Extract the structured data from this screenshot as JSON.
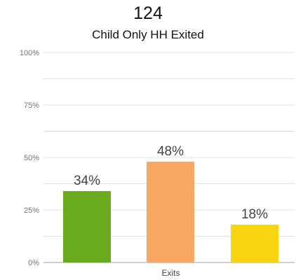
{
  "header": {
    "value": "124",
    "caption": "Child Only HH Exited"
  },
  "chart_data": {
    "type": "bar",
    "categories": [
      "Exits"
    ],
    "series": [
      {
        "values": [
          34
        ],
        "label": "34%",
        "color": "#6aaa1e"
      },
      {
        "values": [
          48
        ],
        "label": "48%",
        "color": "#f9a764"
      },
      {
        "values": [
          18
        ],
        "label": "18%",
        "color": "#f9d511"
      }
    ],
    "ylim": [
      0,
      100
    ],
    "yticks": [
      {
        "value": 0,
        "label": "0%"
      },
      {
        "value": 25,
        "label": "25%"
      },
      {
        "value": 50,
        "label": "50%"
      },
      {
        "value": 75,
        "label": "75%"
      },
      {
        "value": 100,
        "label": "100%"
      }
    ],
    "grid": true,
    "legend": "none",
    "title": "",
    "xlabel": "",
    "ylabel": ""
  }
}
